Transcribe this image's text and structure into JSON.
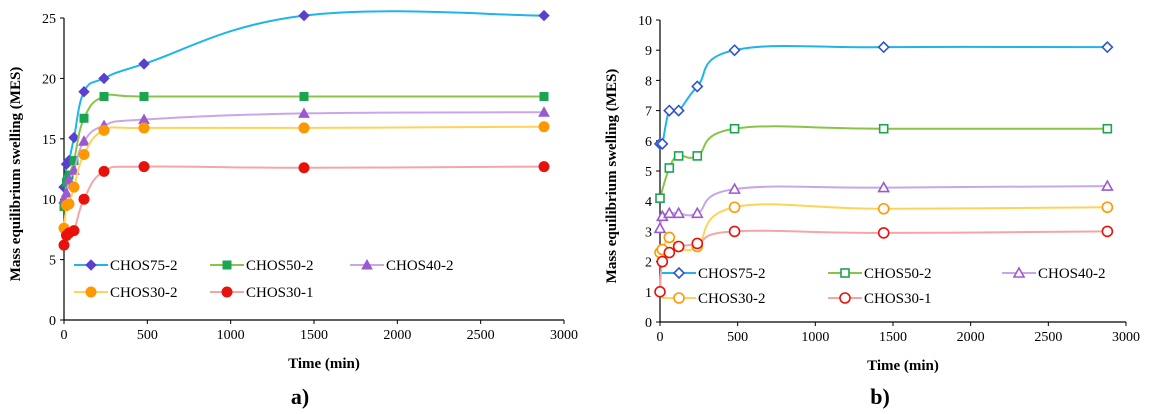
{
  "chart_data": [
    {
      "type": "line",
      "panel_label": "a)",
      "xlabel": "Time (min)",
      "ylabel": "Mass equilibrium swelling (MES)",
      "xlim": [
        0,
        3000
      ],
      "ylim": [
        0,
        25
      ],
      "xticks": [
        "0",
        "500",
        "1000",
        "1500",
        "2000",
        "2500",
        "3000"
      ],
      "yticks": [
        "0",
        "5",
        "10",
        "15",
        "20",
        "25"
      ],
      "grid": false,
      "legend_position": "bottom-inside",
      "marker_fill": "filled",
      "series": [
        {
          "name": "CHOS75-2",
          "color": "#1fb4ea",
          "marker_color": "#5b3fd0",
          "marker": "diamond",
          "x": [
            0,
            15,
            30,
            60,
            120,
            240,
            480,
            1440,
            2880
          ],
          "y": [
            11.0,
            12.9,
            13.2,
            15.1,
            18.9,
            20.0,
            21.2,
            25.2,
            25.2
          ]
        },
        {
          "name": "CHOS50-2",
          "color": "#8bc34a",
          "marker_color": "#1aa551",
          "marker": "square",
          "x": [
            0,
            15,
            30,
            60,
            120,
            240,
            480,
            1440,
            2880
          ],
          "y": [
            9.4,
            11.4,
            12.0,
            13.2,
            16.7,
            18.5,
            18.5,
            18.5,
            18.5
          ]
        },
        {
          "name": "CHOS40-2",
          "color": "#c8a7e8",
          "marker_color": "#9b59d0",
          "marker": "triangle",
          "x": [
            0,
            15,
            30,
            60,
            120,
            240,
            480,
            1440,
            2880
          ],
          "y": [
            10.0,
            10.5,
            11.6,
            12.4,
            14.8,
            16.1,
            16.6,
            17.1,
            17.2
          ]
        },
        {
          "name": "CHOS30-2",
          "color": "#ffd25a",
          "marker_color": "#ff9800",
          "marker": "circle",
          "x": [
            0,
            15,
            30,
            60,
            120,
            240,
            480,
            1440,
            2880
          ],
          "y": [
            7.6,
            9.5,
            9.6,
            11.0,
            13.7,
            15.7,
            15.9,
            15.9,
            16.0
          ]
        },
        {
          "name": "CHOS30-1",
          "color": "#f4a6a6",
          "marker_color": "#e8120c",
          "marker": "circle",
          "x": [
            0,
            15,
            30,
            60,
            120,
            240,
            480,
            1440,
            2880
          ],
          "y": [
            6.2,
            7.0,
            7.2,
            7.4,
            10.0,
            12.3,
            12.7,
            12.6,
            12.7
          ]
        }
      ]
    },
    {
      "type": "line",
      "panel_label": "b)",
      "xlabel": "Time (min)",
      "ylabel": "Mass equilibrium swelling (MES)",
      "xlim": [
        0,
        3000
      ],
      "ylim": [
        0,
        10
      ],
      "xticks": [
        "0",
        "500",
        "1000",
        "1500",
        "2000",
        "2500",
        "3000"
      ],
      "yticks": [
        "0",
        "1",
        "2",
        "3",
        "4",
        "5",
        "6",
        "7",
        "8",
        "9",
        "10"
      ],
      "grid": false,
      "legend_position": "bottom-inside",
      "marker_fill": "open",
      "series": [
        {
          "name": "CHOS75-2",
          "color": "#1fb4ea",
          "marker_color": "#3056c9",
          "marker": "diamond",
          "x": [
            0,
            15,
            60,
            120,
            240,
            480,
            1440,
            2880
          ],
          "y": [
            5.9,
            5.9,
            7.0,
            7.0,
            7.8,
            9.0,
            9.1,
            9.1
          ]
        },
        {
          "name": "CHOS50-2",
          "color": "#8bc34a",
          "marker_color": "#1aa551",
          "marker": "square",
          "x": [
            0,
            60,
            120,
            240,
            480,
            1440,
            2880
          ],
          "y": [
            4.1,
            5.1,
            5.5,
            5.5,
            6.4,
            6.4,
            6.4
          ]
        },
        {
          "name": "CHOS40-2",
          "color": "#c8a7e8",
          "marker_color": "#9b59d0",
          "marker": "triangle",
          "x": [
            0,
            15,
            60,
            120,
            240,
            480,
            1440,
            2880
          ],
          "y": [
            3.1,
            3.5,
            3.6,
            3.6,
            3.6,
            4.4,
            4.45,
            4.5
          ]
        },
        {
          "name": "CHOS30-2",
          "color": "#ffd25a",
          "marker_color": "#ff9800",
          "marker": "circle",
          "x": [
            0,
            15,
            60,
            120,
            240,
            480,
            1440,
            2880
          ],
          "y": [
            2.3,
            2.4,
            2.8,
            2.5,
            2.5,
            3.8,
            3.75,
            3.8
          ]
        },
        {
          "name": "CHOS30-1",
          "color": "#f4a6a6",
          "marker_color": "#e8120c",
          "marker": "circle",
          "x": [
            0,
            15,
            60,
            120,
            240,
            480,
            1440,
            2880
          ],
          "y": [
            1.0,
            2.0,
            2.3,
            2.5,
            2.6,
            3.0,
            2.95,
            3.0
          ]
        }
      ]
    }
  ]
}
